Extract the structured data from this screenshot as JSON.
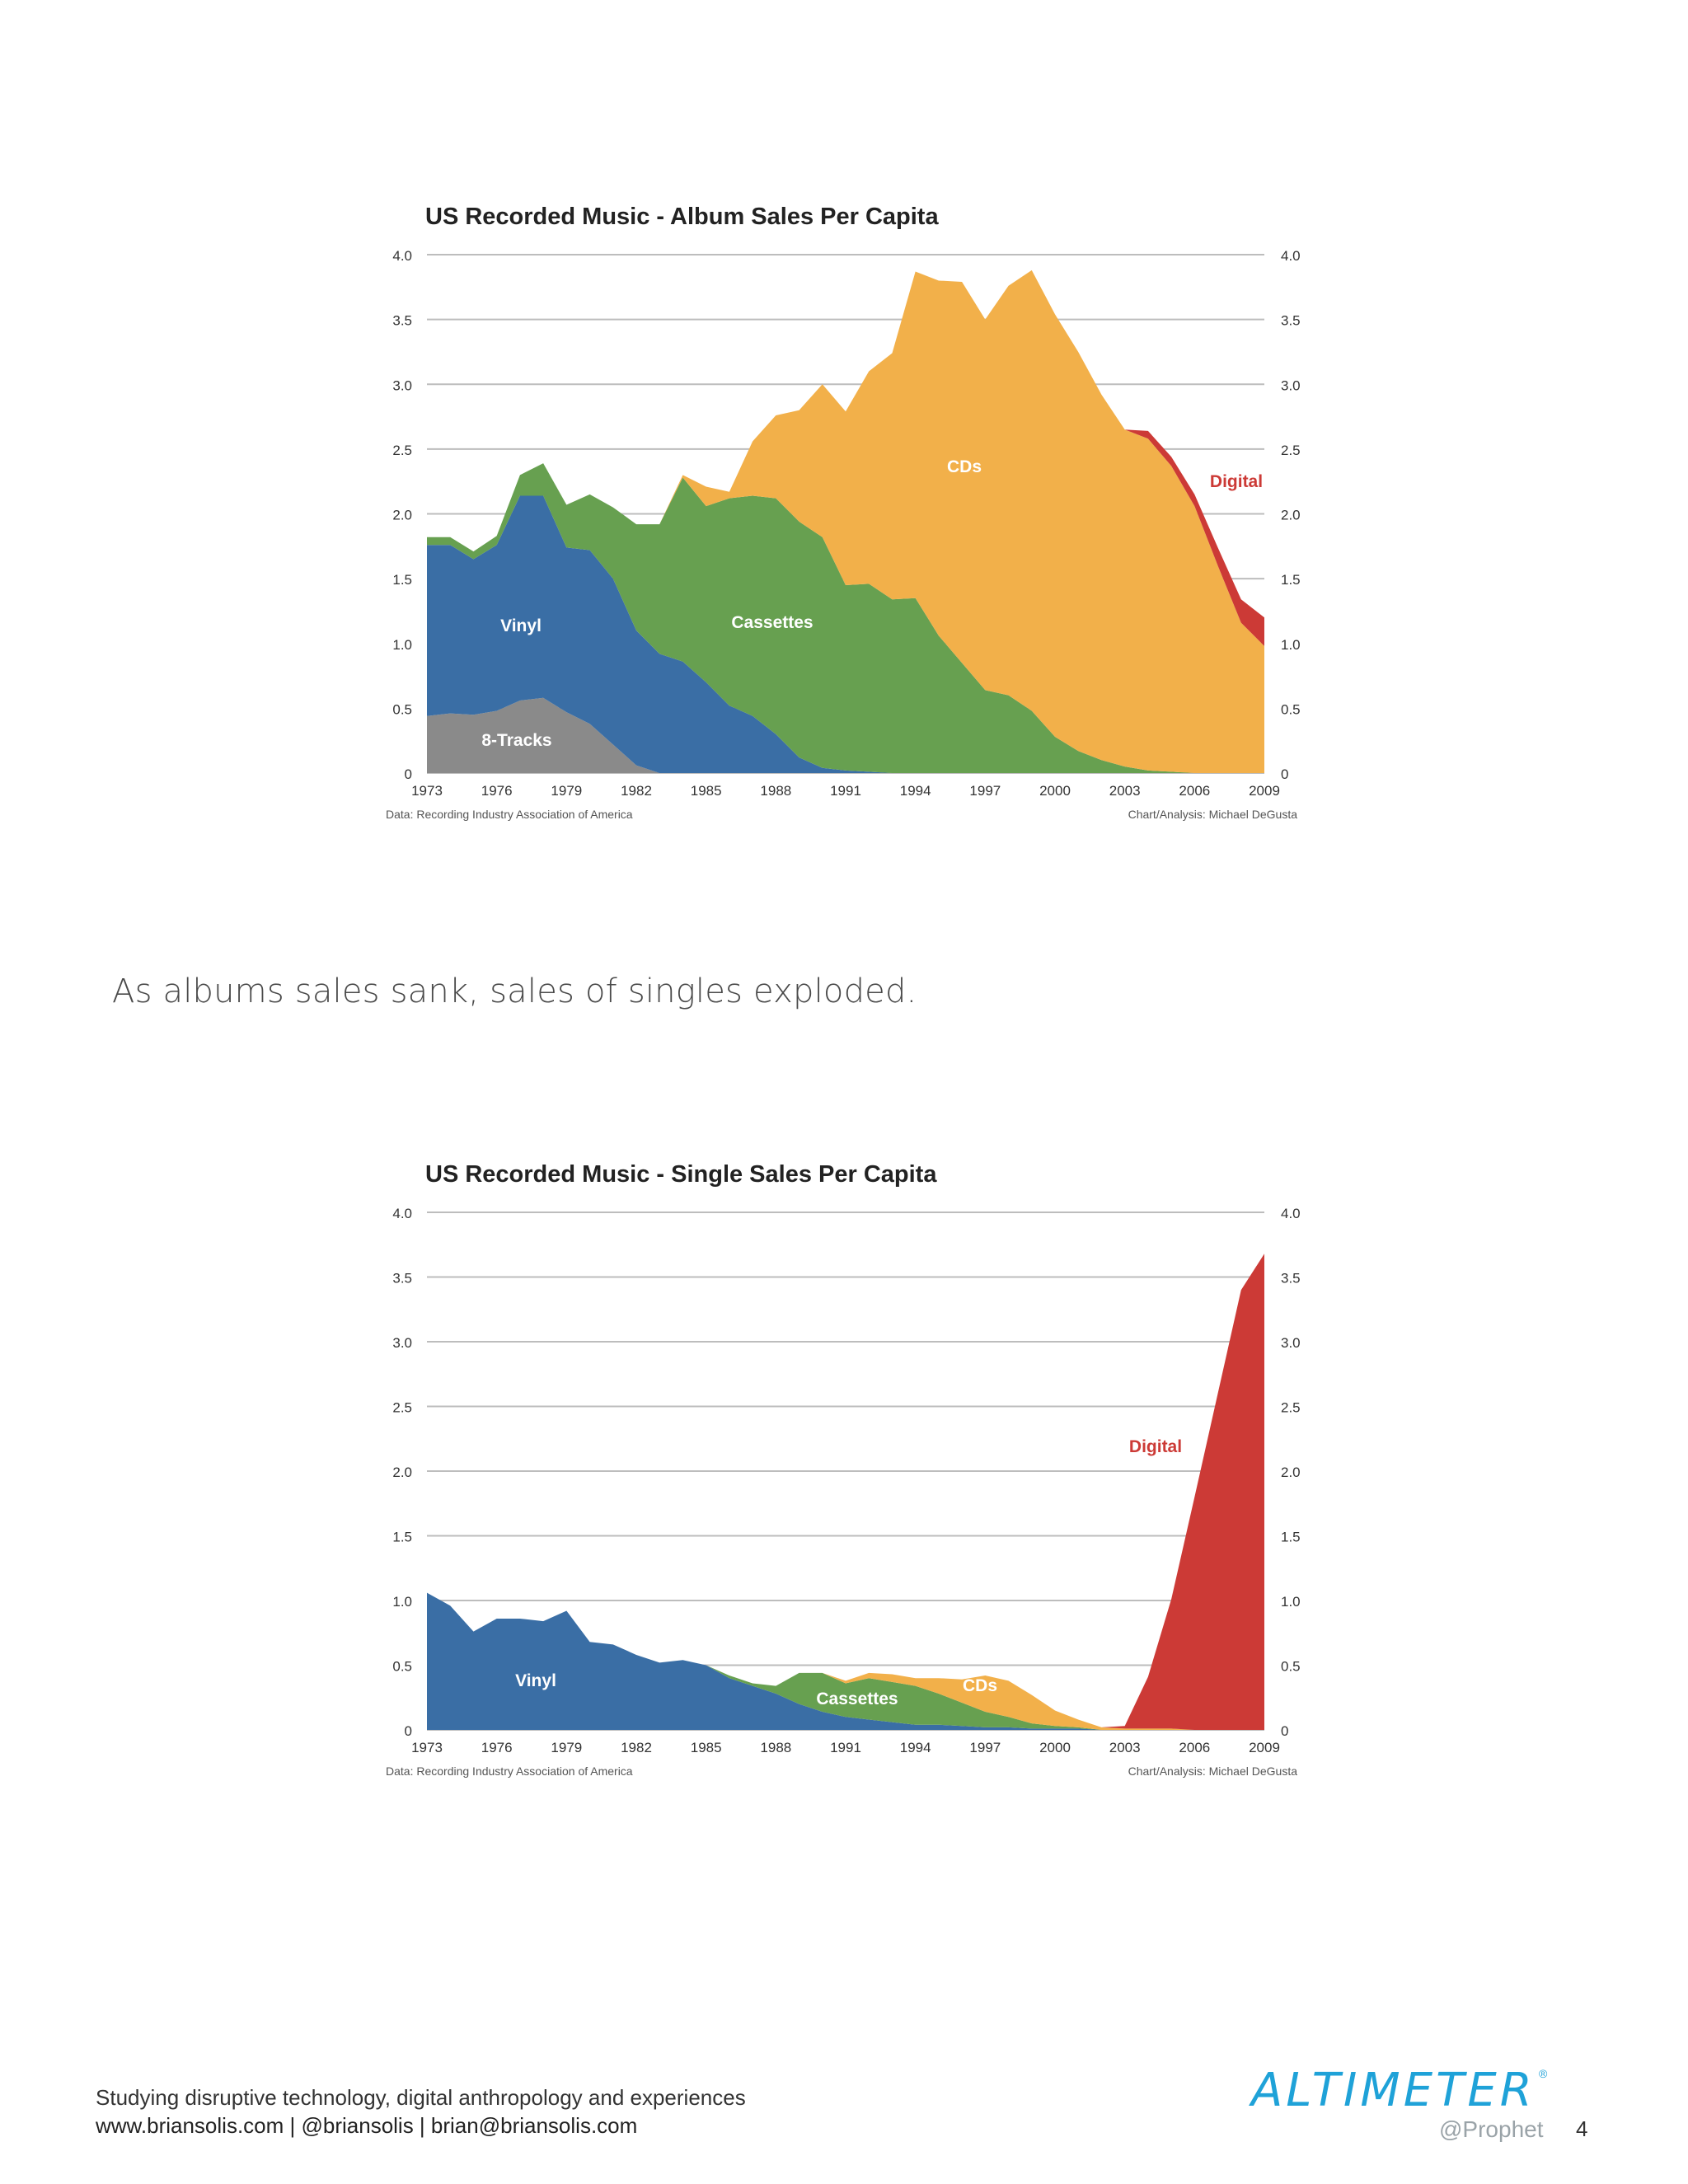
{
  "caption": "As albums sales sank, sales of singles exploded.",
  "footer": {
    "line1": "Studying disruptive technology, digital anthropology and experiences",
    "line2": "www.briansolis.com | @briansolis | brian@briansolis.com",
    "page_number": "4"
  },
  "logo": {
    "word": "ALTIMETER",
    "mark": "®",
    "sub": "@Prophet"
  },
  "colors": {
    "vinyl": "#3a6ea5",
    "tracks": "#8a8a8a",
    "cassettes": "#67a050",
    "cds": "#f2b04a",
    "digital": "#cc3a36",
    "grid": "#bdbdbd"
  },
  "chart_data": [
    {
      "type": "area",
      "stacked": true,
      "title": "US Recorded Music - Album Sales Per Capita",
      "source": "Data: Recording Industry Association of America",
      "credit": "Chart/Analysis: Michael DeGusta",
      "ylim": [
        0,
        4.0
      ],
      "yticks": [
        "0",
        "0.5",
        "1.0",
        "1.5",
        "2.0",
        "2.5",
        "3.0",
        "3.5",
        "4.0"
      ],
      "xticks": [
        "1973",
        "1976",
        "1979",
        "1982",
        "1985",
        "1988",
        "1991",
        "1994",
        "1997",
        "2000",
        "2003",
        "2006",
        "2009"
      ],
      "grid": true,
      "x": [
        1973,
        1974,
        1975,
        1976,
        1977,
        1978,
        1979,
        1980,
        1981,
        1982,
        1983,
        1984,
        1985,
        1986,
        1987,
        1988,
        1989,
        1990,
        1991,
        1992,
        1993,
        1994,
        1995,
        1996,
        1997,
        1998,
        1999,
        2000,
        2001,
        2002,
        2003,
        2004,
        2005,
        2006,
        2007,
        2008,
        2009
      ],
      "series": [
        {
          "name": "8-Tracks",
          "values": [
            0.44,
            0.46,
            0.45,
            0.48,
            0.56,
            0.58,
            0.47,
            0.38,
            0.22,
            0.06,
            0,
            0,
            0,
            0,
            0,
            0,
            0,
            0,
            0,
            0,
            0,
            0,
            0,
            0,
            0,
            0,
            0,
            0,
            0,
            0,
            0,
            0,
            0,
            0,
            0,
            0,
            0
          ]
        },
        {
          "name": "Vinyl",
          "values": [
            1.32,
            1.3,
            1.2,
            1.28,
            1.58,
            1.56,
            1.27,
            1.34,
            1.28,
            1.04,
            0.92,
            0.86,
            0.7,
            0.52,
            0.44,
            0.3,
            0.12,
            0.04,
            0.02,
            0.01,
            0,
            0,
            0,
            0,
            0,
            0,
            0,
            0,
            0,
            0,
            0,
            0,
            0,
            0,
            0,
            0,
            0
          ]
        },
        {
          "name": "Cassettes",
          "values": [
            0.06,
            0.06,
            0.06,
            0.07,
            0.16,
            0.25,
            0.33,
            0.43,
            0.55,
            0.82,
            1.0,
            1.42,
            1.36,
            1.6,
            1.7,
            1.82,
            1.82,
            1.78,
            1.43,
            1.45,
            1.34,
            1.35,
            1.06,
            0.85,
            0.64,
            0.6,
            0.48,
            0.28,
            0.17,
            0.1,
            0.05,
            0.02,
            0.01,
            0,
            0,
            0,
            0
          ]
        },
        {
          "name": "CDs",
          "values": [
            0,
            0,
            0,
            0,
            0,
            0,
            0,
            0,
            0,
            0,
            0,
            0.02,
            0.15,
            0.05,
            0.42,
            0.64,
            0.86,
            1.18,
            1.34,
            1.64,
            1.9,
            2.52,
            2.74,
            2.94,
            2.86,
            3.16,
            3.4,
            3.26,
            3.08,
            2.82,
            2.6,
            2.56,
            2.36,
            2.06,
            1.6,
            1.16,
            0.98
          ]
        },
        {
          "name": "Digital",
          "values": [
            0,
            0,
            0,
            0,
            0,
            0,
            0,
            0,
            0,
            0,
            0,
            0,
            0,
            0,
            0,
            0,
            0,
            0,
            0,
            0,
            0,
            0,
            0,
            0,
            0,
            0,
            0,
            0,
            0,
            0,
            0,
            0.06,
            0.07,
            0.09,
            0.14,
            0.18,
            0.22
          ]
        }
      ]
    },
    {
      "type": "area",
      "stacked": true,
      "title": "US Recorded Music - Single Sales Per Capita",
      "source": "Data: Recording Industry Association of America",
      "credit": "Chart/Analysis: Michael DeGusta",
      "ylim": [
        0,
        4.0
      ],
      "yticks": [
        "0",
        "0.5",
        "1.0",
        "1.5",
        "2.0",
        "2.5",
        "3.0",
        "3.5",
        "4.0"
      ],
      "xticks": [
        "1973",
        "1976",
        "1979",
        "1982",
        "1985",
        "1988",
        "1991",
        "1994",
        "1997",
        "2000",
        "2003",
        "2006",
        "2009"
      ],
      "grid": true,
      "x": [
        1973,
        1974,
        1975,
        1976,
        1977,
        1978,
        1979,
        1980,
        1981,
        1982,
        1983,
        1984,
        1985,
        1986,
        1987,
        1988,
        1989,
        1990,
        1991,
        1992,
        1993,
        1994,
        1995,
        1996,
        1997,
        1998,
        1999,
        2000,
        2001,
        2002,
        2003,
        2004,
        2005,
        2006,
        2007,
        2008,
        2009
      ],
      "series": [
        {
          "name": "Vinyl",
          "values": [
            1.06,
            0.96,
            0.76,
            0.86,
            0.86,
            0.84,
            0.92,
            0.68,
            0.66,
            0.58,
            0.52,
            0.54,
            0.5,
            0.4,
            0.34,
            0.28,
            0.2,
            0.14,
            0.1,
            0.08,
            0.06,
            0.04,
            0.04,
            0.03,
            0.02,
            0.02,
            0.01,
            0.01,
            0.01,
            0,
            0,
            0,
            0,
            0,
            0,
            0,
            0
          ]
        },
        {
          "name": "Cassettes",
          "values": [
            0,
            0,
            0,
            0,
            0,
            0,
            0,
            0,
            0,
            0,
            0,
            0,
            0,
            0.02,
            0.02,
            0.06,
            0.24,
            0.3,
            0.26,
            0.32,
            0.31,
            0.3,
            0.24,
            0.18,
            0.12,
            0.08,
            0.04,
            0.02,
            0.01,
            0,
            0,
            0,
            0,
            0,
            0,
            0,
            0
          ]
        },
        {
          "name": "CDs",
          "values": [
            0,
            0,
            0,
            0,
            0,
            0,
            0,
            0,
            0,
            0,
            0,
            0,
            0,
            0,
            0,
            0,
            0,
            0,
            0.02,
            0.04,
            0.06,
            0.06,
            0.12,
            0.18,
            0.28,
            0.28,
            0.22,
            0.12,
            0.06,
            0.02,
            0.01,
            0.01,
            0.01,
            0,
            0,
            0,
            0
          ]
        },
        {
          "name": "Digital",
          "values": [
            0,
            0,
            0,
            0,
            0,
            0,
            0,
            0,
            0,
            0,
            0,
            0,
            0,
            0,
            0,
            0,
            0,
            0,
            0,
            0,
            0,
            0,
            0,
            0,
            0,
            0,
            0,
            0,
            0,
            0,
            0.02,
            0.4,
            1.0,
            1.8,
            2.6,
            3.4,
            3.68
          ]
        }
      ]
    }
  ]
}
